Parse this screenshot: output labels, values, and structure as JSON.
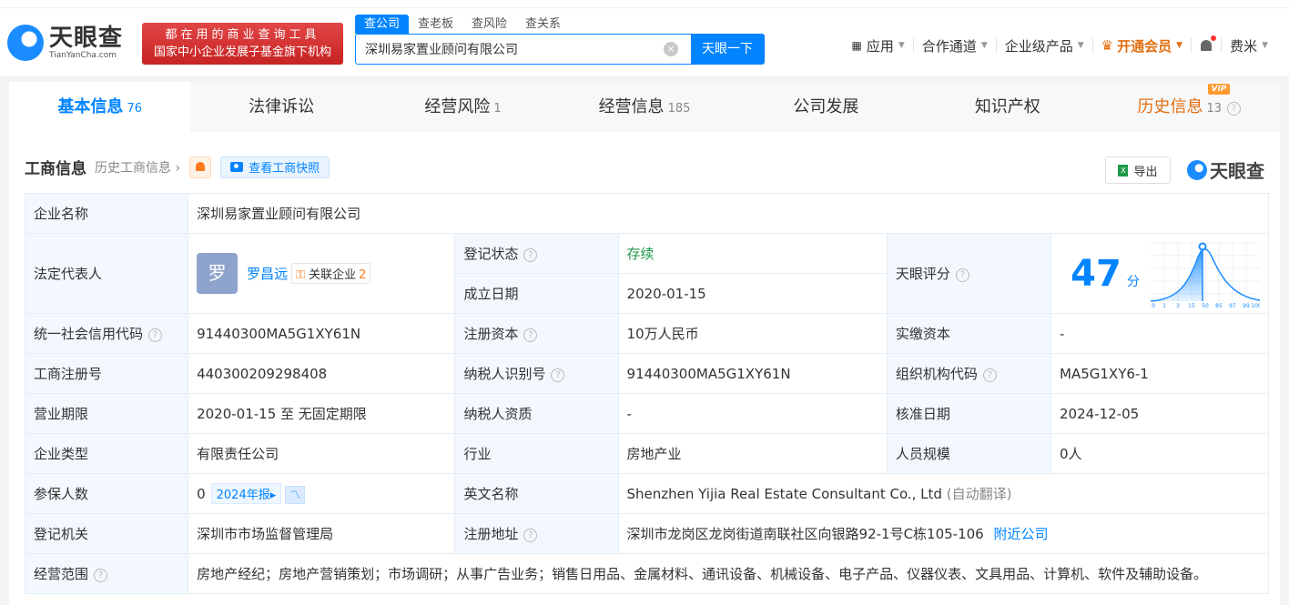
{
  "header": {
    "logo_cn": "天眼查",
    "logo_en": "TianYanCha.com",
    "slogan1": "都在用的商业查询工具",
    "slogan2": "国家中小企业发展子基金旗下机构",
    "search_tabs": [
      "查公司",
      "查老板",
      "查风险",
      "查关系"
    ],
    "search_value": "深圳易家置业顾问有限公司",
    "search_button": "天眼一下",
    "nav": [
      "应用",
      "合作通道",
      "企业级产品",
      "开通会员",
      "费米"
    ]
  },
  "tabs": [
    {
      "label": "基本信息",
      "count": "76"
    },
    {
      "label": "法律诉讼",
      "count": ""
    },
    {
      "label": "经营风险",
      "count": "1"
    },
    {
      "label": "经营信息",
      "count": "185"
    },
    {
      "label": "公司发展",
      "count": ""
    },
    {
      "label": "知识产权",
      "count": ""
    },
    {
      "label": "历史信息",
      "count": "13",
      "badge": "VIP"
    }
  ],
  "section": {
    "title": "工商信息",
    "history": "历史工商信息 ›",
    "snapshot": "查看工商快照",
    "export": "导出",
    "brand": "天眼查"
  },
  "info": {
    "company_name_label": "企业名称",
    "company_name": "深圳易家置业顾问有限公司",
    "legal_rep_label": "法定代表人",
    "avatar": "罗",
    "legal_rep": "罗昌远",
    "related_label": "关联企业",
    "related_count": "2",
    "status_label": "登记状态",
    "status": "存续",
    "found_label": "成立日期",
    "found": "2020-01-15",
    "score_label": "天眼评分",
    "score": "47",
    "score_unit": "分",
    "score_axis": [
      "0",
      "1",
      "3",
      "15",
      "50",
      "85",
      "97",
      "99",
      "100"
    ],
    "credit_label": "统一社会信用代码",
    "credit": "91440300MA5G1XY61N",
    "capital_label": "注册资本",
    "capital": "10万人民币",
    "paid_label": "实缴资本",
    "paid": "-",
    "reg_no_label": "工商注册号",
    "reg_no": "440300209298408",
    "tax_label": "纳税人识别号",
    "tax": "91440300MA5G1XY61N",
    "org_label": "组织机构代码",
    "org": "MA5G1XY6-1",
    "term_label": "营业期限",
    "term": "2020-01-15 至 无固定期限",
    "taxq_label": "纳税人资质",
    "taxq": "-",
    "approve_label": "核准日期",
    "approve": "2024-12-05",
    "type_label": "企业类型",
    "type": "有限责任公司",
    "industry_label": "行业",
    "industry": "房地产业",
    "staff_label": "人员规模",
    "staff": "0人",
    "insured_label": "参保人数",
    "insured": "0",
    "report": "2024年报▸",
    "en_label": "英文名称",
    "en": "Shenzhen Yijia Real Estate Consultant Co., Ltd",
    "auto_trans": "(自动翻译)",
    "authority_label": "登记机关",
    "authority": "深圳市市场监督管理局",
    "addr_label": "注册地址",
    "addr": "深圳市龙岗区龙岗街道南联社区向银路92-1号C栋105-106",
    "nearby": "附近公司",
    "scope_label": "经营范围",
    "scope": "房地产经纪；房地产营销策划；市场调研；从事广告业务；销售日用品、金属材料、通讯设备、机械设备、电子产品、仪器仪表、文具用品、计算机、软件及辅助设备。"
  }
}
